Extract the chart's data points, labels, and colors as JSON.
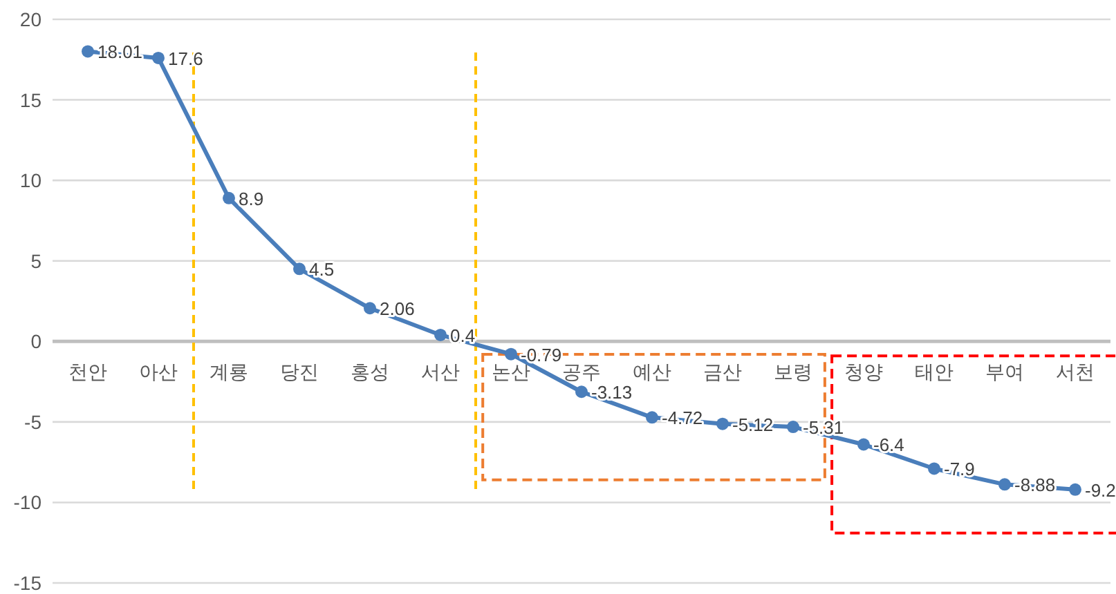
{
  "chart_data": {
    "type": "line",
    "categories": [
      "천안",
      "아산",
      "계룡",
      "당진",
      "홍성",
      "서산",
      "논산",
      "공주",
      "예산",
      "금산",
      "보령",
      "청양",
      "태안",
      "부여",
      "서천"
    ],
    "series": [
      {
        "color": "#4a7ebb",
        "values": [
          18.01,
          17.6,
          8.9,
          4.5,
          2.06,
          0.4,
          -0.79,
          -3.13,
          -4.72,
          -5.12,
          -5.31,
          -6.4,
          -7.9,
          -8.88,
          -9.2
        ]
      }
    ],
    "ylim": [
      -15,
      20
    ],
    "yticks": [
      -15,
      -10,
      -5,
      0,
      5,
      10,
      15,
      20
    ],
    "grid": "y",
    "marker": "circle",
    "line_style": "solid",
    "data_labels": true
  }
}
